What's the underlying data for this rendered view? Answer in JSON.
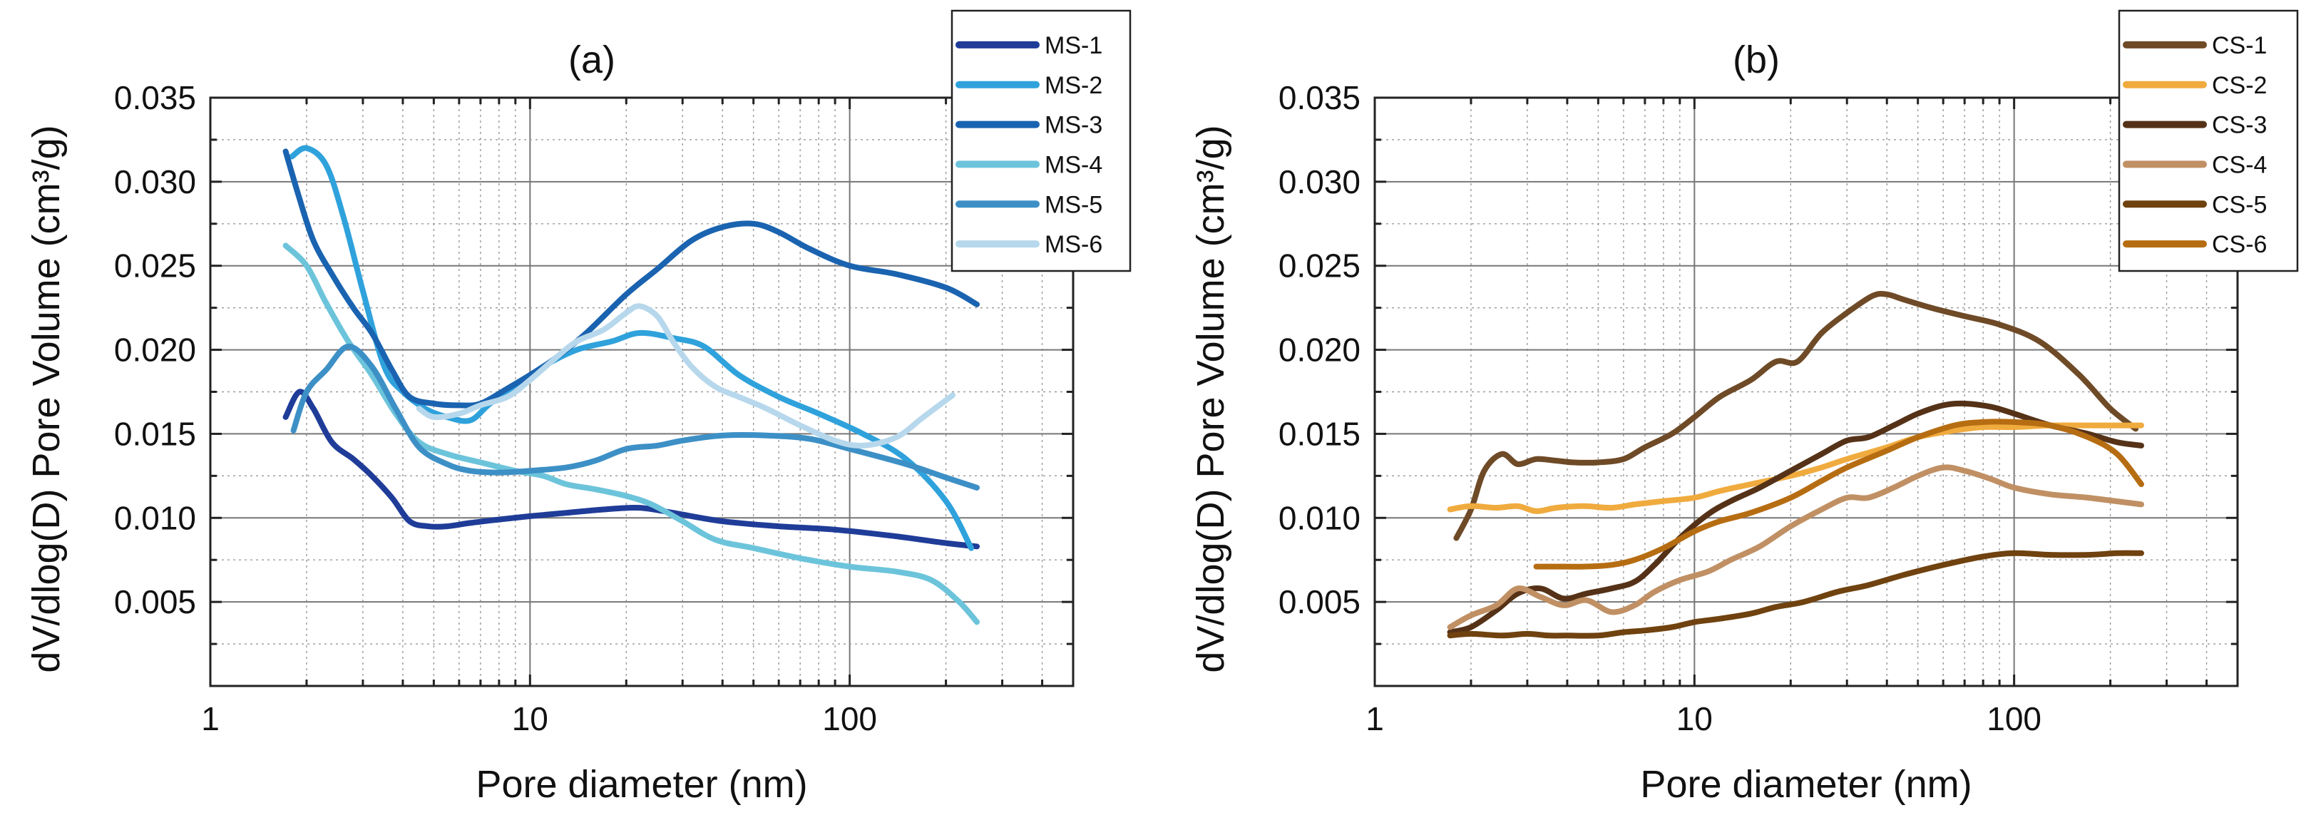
{
  "chart_data": [
    {
      "type": "line",
      "title": "(a)",
      "xlabel": "Pore diameter (nm)",
      "ylabel": "dV/dlog(D)  Pore Volume (cm³/g)",
      "x_scale": "log",
      "xlim": [
        1,
        500
      ],
      "ylim": [
        0,
        0.035
      ],
      "x_ticks": [
        "1",
        "10",
        "100"
      ],
      "y_ticks": [
        "0.005",
        "0.010",
        "0.015",
        "0.020",
        "0.025",
        "0.030",
        "0.035"
      ],
      "grid": true,
      "legend_position": "top-right",
      "series": [
        {
          "name": "MS-1",
          "color": "#1f3c98",
          "x": [
            1.72,
            1.9,
            2.1,
            2.4,
            2.8,
            3.2,
            3.7,
            4.2,
            4.8,
            5.5,
            6.5,
            8,
            10,
            13,
            17,
            22,
            28,
            40,
            60,
            90,
            140,
            200,
            250
          ],
          "y": [
            0.016,
            0.0175,
            0.0165,
            0.0145,
            0.0135,
            0.0125,
            0.0112,
            0.0098,
            0.0095,
            0.0095,
            0.0097,
            0.0099,
            0.0101,
            0.0103,
            0.0105,
            0.0106,
            0.0103,
            0.0098,
            0.0095,
            0.0093,
            0.0089,
            0.0085,
            0.0083
          ]
        },
        {
          "name": "MS-2",
          "color": "#2fa2dc",
          "x": [
            1.8,
            2.0,
            2.3,
            2.6,
            3.0,
            3.5,
            4.0,
            4.7,
            5.5,
            6.5,
            7.5,
            9,
            11,
            14,
            18,
            22,
            28,
            35,
            45,
            60,
            80,
            110,
            150,
            200,
            240
          ],
          "y": [
            0.0315,
            0.032,
            0.031,
            0.028,
            0.0235,
            0.019,
            0.0175,
            0.0165,
            0.016,
            0.0158,
            0.0168,
            0.0178,
            0.019,
            0.02,
            0.0205,
            0.021,
            0.0207,
            0.0202,
            0.0185,
            0.0172,
            0.0162,
            0.015,
            0.0135,
            0.011,
            0.0082
          ]
        },
        {
          "name": "MS-3",
          "color": "#1a63b0",
          "x": [
            1.72,
            1.9,
            2.1,
            2.4,
            2.8,
            3.2,
            3.7,
            4.2,
            5.0,
            6.0,
            7.0,
            8.5,
            10,
            12,
            15,
            20,
            25,
            32,
            40,
            50,
            60,
            75,
            100,
            140,
            200,
            250
          ],
          "y": [
            0.0318,
            0.029,
            0.0265,
            0.0245,
            0.0225,
            0.021,
            0.0188,
            0.0172,
            0.0168,
            0.0167,
            0.0168,
            0.0177,
            0.0185,
            0.0195,
            0.021,
            0.0233,
            0.0248,
            0.0265,
            0.0273,
            0.0275,
            0.027,
            0.026,
            0.025,
            0.0245,
            0.0237,
            0.0227
          ]
        },
        {
          "name": "MS-4",
          "color": "#6cc4db",
          "x": [
            1.72,
            2.0,
            2.3,
            2.7,
            3.2,
            3.8,
            4.5,
            5.5,
            7.0,
            9,
            11,
            13,
            16,
            20,
            24,
            30,
            38,
            50,
            70,
            100,
            140,
            180,
            220,
            250
          ],
          "y": [
            0.0262,
            0.025,
            0.0228,
            0.0205,
            0.0185,
            0.0162,
            0.0145,
            0.0138,
            0.0133,
            0.0128,
            0.0125,
            0.012,
            0.0117,
            0.0113,
            0.0108,
            0.0098,
            0.0087,
            0.0082,
            0.0076,
            0.0071,
            0.0068,
            0.0063,
            0.005,
            0.0038
          ]
        },
        {
          "name": "MS-5",
          "color": "#3d90c6",
          "x": [
            1.82,
            2.0,
            2.3,
            2.7,
            3.2,
            3.8,
            4.5,
            5.5,
            6.5,
            8,
            10,
            13,
            16,
            20,
            25,
            30,
            40,
            55,
            75,
            100,
            150,
            200,
            250
          ],
          "y": [
            0.0152,
            0.0175,
            0.0188,
            0.0202,
            0.019,
            0.0165,
            0.0142,
            0.0132,
            0.0128,
            0.0127,
            0.0128,
            0.013,
            0.0134,
            0.0141,
            0.0143,
            0.0146,
            0.0149,
            0.0149,
            0.0147,
            0.0141,
            0.0132,
            0.0124,
            0.0118
          ]
        },
        {
          "name": "MS-6",
          "color": "#b7d8ec",
          "x": [
            4.5,
            5.0,
            6.0,
            7.0,
            8.5,
            10,
            12,
            14,
            17,
            20,
            22,
            25,
            28,
            32,
            38,
            45,
            55,
            70,
            90,
            110,
            140,
            170,
            210
          ],
          "y": [
            0.0165,
            0.016,
            0.0162,
            0.0167,
            0.0172,
            0.0182,
            0.0195,
            0.0205,
            0.0212,
            0.0222,
            0.0226,
            0.022,
            0.0205,
            0.019,
            0.0178,
            0.0172,
            0.0165,
            0.0155,
            0.0146,
            0.0143,
            0.0148,
            0.016,
            0.0173
          ]
        }
      ]
    },
    {
      "type": "line",
      "title": "(b)",
      "xlabel": "Pore diameter (nm)",
      "ylabel": "dV/dlog(D)  Pore Volume (cm³/g)",
      "x_scale": "log",
      "xlim": [
        1,
        500
      ],
      "ylim": [
        0,
        0.035
      ],
      "x_ticks": [
        "1",
        "10",
        "100"
      ],
      "y_ticks": [
        "0.005",
        "0.010",
        "0.015",
        "0.020",
        "0.025",
        "0.030",
        "0.035"
      ],
      "grid": true,
      "legend_position": "top-right",
      "series": [
        {
          "name": "CS-1",
          "color": "#6e4a27",
          "x": [
            1.8,
            2.0,
            2.2,
            2.5,
            2.8,
            3.2,
            3.7,
            4.2,
            5.0,
            6.0,
            7.0,
            8.5,
            10,
            12,
            15,
            18,
            21,
            25,
            30,
            36,
            40,
            45,
            55,
            70,
            90,
            120,
            160,
            200,
            240
          ],
          "y": [
            0.0088,
            0.0105,
            0.0128,
            0.0138,
            0.0132,
            0.0135,
            0.0134,
            0.0133,
            0.0133,
            0.0135,
            0.0142,
            0.015,
            0.016,
            0.0172,
            0.0182,
            0.0193,
            0.0193,
            0.021,
            0.0222,
            0.0232,
            0.0233,
            0.023,
            0.0225,
            0.022,
            0.0215,
            0.0205,
            0.0185,
            0.0165,
            0.0153
          ]
        },
        {
          "name": "CS-2",
          "color": "#f0ab3e",
          "x": [
            1.72,
            2.0,
            2.4,
            2.8,
            3.2,
            3.7,
            4.5,
            5.5,
            6.5,
            8,
            10,
            12,
            15,
            20,
            25,
            30,
            40,
            50,
            65,
            80,
            100,
            130,
            170,
            210,
            250
          ],
          "y": [
            0.0105,
            0.0107,
            0.0106,
            0.0107,
            0.0104,
            0.0106,
            0.0107,
            0.0106,
            0.0108,
            0.011,
            0.0112,
            0.0116,
            0.012,
            0.0125,
            0.013,
            0.0135,
            0.0142,
            0.0148,
            0.0152,
            0.0154,
            0.0154,
            0.0155,
            0.0155,
            0.0155,
            0.0155
          ]
        },
        {
          "name": "CS-3",
          "color": "#553217",
          "x": [
            1.72,
            2.0,
            2.4,
            2.8,
            3.3,
            3.9,
            4.6,
            5.5,
            6.5,
            7.5,
            9,
            11,
            13,
            16,
            20,
            25,
            30,
            35,
            42,
            50,
            60,
            70,
            85,
            100,
            130,
            170,
            210,
            250
          ],
          "y": [
            0.0032,
            0.0035,
            0.0045,
            0.0055,
            0.0058,
            0.0052,
            0.0055,
            0.0058,
            0.0062,
            0.0072,
            0.0088,
            0.0102,
            0.011,
            0.0118,
            0.0128,
            0.0138,
            0.0146,
            0.0148,
            0.0155,
            0.0162,
            0.0167,
            0.0168,
            0.0166,
            0.0162,
            0.0155,
            0.015,
            0.0145,
            0.0143
          ]
        },
        {
          "name": "CS-4",
          "color": "#c09064",
          "x": [
            1.72,
            2.0,
            2.4,
            2.8,
            3.3,
            3.9,
            4.6,
            5.5,
            6.5,
            7.5,
            9,
            11,
            13,
            16,
            20,
            25,
            30,
            35,
            42,
            50,
            60,
            70,
            85,
            100,
            130,
            170,
            250
          ],
          "y": [
            0.0035,
            0.0042,
            0.0048,
            0.0058,
            0.0053,
            0.0048,
            0.0051,
            0.0044,
            0.0048,
            0.0056,
            0.0063,
            0.0068,
            0.0075,
            0.0083,
            0.0095,
            0.0105,
            0.0112,
            0.0112,
            0.0118,
            0.0125,
            0.013,
            0.0128,
            0.0123,
            0.0118,
            0.0114,
            0.0112,
            0.0108
          ]
        },
        {
          "name": "CS-5",
          "color": "#6f420f",
          "x": [
            1.72,
            2.0,
            2.5,
            3.0,
            3.5,
            4.0,
            5.0,
            6.0,
            7.0,
            8.5,
            10,
            12,
            15,
            18,
            22,
            28,
            35,
            45,
            60,
            80,
            100,
            130,
            170,
            210,
            250
          ],
          "y": [
            0.003,
            0.0031,
            0.003,
            0.0031,
            0.003,
            0.003,
            0.003,
            0.0032,
            0.0033,
            0.0035,
            0.0038,
            0.004,
            0.0043,
            0.0047,
            0.005,
            0.0056,
            0.006,
            0.0066,
            0.0072,
            0.0077,
            0.0079,
            0.0078,
            0.0078,
            0.0079,
            0.0079
          ]
        },
        {
          "name": "CS-6",
          "color": "#b66d12",
          "x": [
            3.2,
            3.7,
            4.5,
            5.5,
            6.5,
            8,
            10,
            12,
            15,
            20,
            25,
            30,
            40,
            50,
            65,
            80,
            100,
            130,
            170,
            210,
            250
          ],
          "y": [
            0.0071,
            0.0071,
            0.0071,
            0.0072,
            0.0075,
            0.0082,
            0.0092,
            0.0098,
            0.0103,
            0.0112,
            0.0122,
            0.013,
            0.014,
            0.0148,
            0.0155,
            0.0157,
            0.0157,
            0.0155,
            0.0148,
            0.0138,
            0.012
          ]
        }
      ]
    }
  ]
}
